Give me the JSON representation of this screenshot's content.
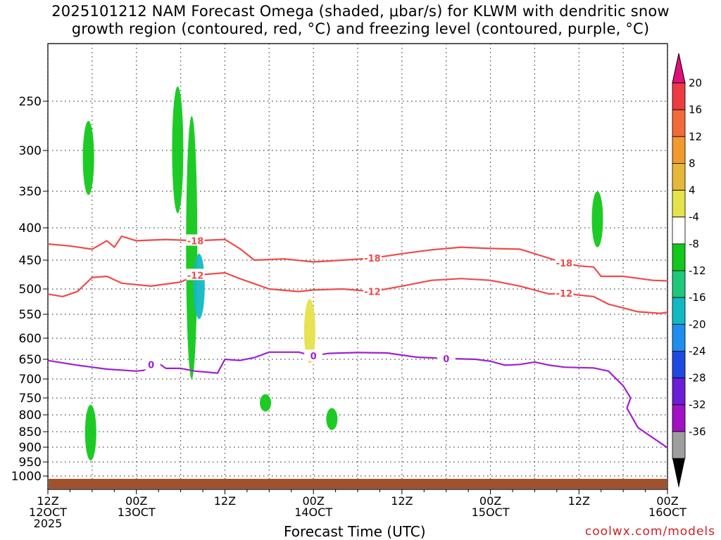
{
  "title_line1": "2025101212 NAM Forecast Omega (shaded, μbar/s) for KLWM with dendritic snow",
  "title_line2": "growth region (contoured, red, °C) and freezing level (contoured, purple, °C)",
  "x_axis_label": "Forecast Time (UTC)",
  "credit": "coolwx.com/models",
  "chart_data": {
    "type": "heatmap",
    "title": "2025101212 NAM Forecast Omega (shaded, μbar/s) for KLWM with dendritic snow growth region (contoured, red, °C) and freezing level (contoured, purple, °C)",
    "xlabel": "Forecast Time (UTC)",
    "x_ticks": [
      {
        "hour": 0,
        "line1": "12Z",
        "line2": "12OCT",
        "line3": "2025"
      },
      {
        "hour": 12,
        "line1": "00Z",
        "line2": "13OCT"
      },
      {
        "hour": 24,
        "line1": "12Z"
      },
      {
        "hour": 36,
        "line1": "00Z",
        "line2": "14OCT"
      },
      {
        "hour": 48,
        "line1": "12Z"
      },
      {
        "hour": 60,
        "line1": "00Z",
        "line2": "15OCT"
      },
      {
        "hour": 72,
        "line1": "12Z"
      },
      {
        "hour": 84,
        "line1": "00Z",
        "line2": "16OCT"
      }
    ],
    "y_ticks": [
      250,
      300,
      350,
      400,
      450,
      500,
      550,
      600,
      650,
      700,
      750,
      800,
      850,
      900,
      950,
      1000
    ],
    "colorbar": {
      "labels": [
        "20",
        "16",
        "12",
        "8",
        "4",
        "-4",
        "-8",
        "-12",
        "-16",
        "-20",
        "-24",
        "-28",
        "-32",
        "-36"
      ],
      "colors": [
        "#ee3a43",
        "#f26a3a",
        "#f29a2e",
        "#e6b83a",
        "#e6e24a",
        "#ffffff",
        "#12c81a",
        "#1ec87a",
        "#12b8c4",
        "#1e8ef0",
        "#1e4ae0",
        "#6a1ed8",
        "#a012c4",
        "#9e9e9e"
      ],
      "top_arrow_color": "#e0107a",
      "bottom_arrow_color": "#000000"
    },
    "contours": [
      {
        "label": "-18",
        "color": "#f04a4a",
        "points": [
          [
            0,
            425
          ],
          [
            3,
            428
          ],
          [
            6,
            433
          ],
          [
            8,
            420
          ],
          [
            9,
            430
          ],
          [
            10,
            413
          ],
          [
            12,
            420
          ],
          [
            16,
            418
          ],
          [
            20,
            420
          ],
          [
            24,
            418
          ],
          [
            26,
            432
          ],
          [
            28,
            450
          ],
          [
            32,
            448
          ],
          [
            36,
            453
          ],
          [
            40,
            450
          ],
          [
            44,
            447
          ],
          [
            48,
            440
          ],
          [
            52,
            434
          ],
          [
            56,
            430
          ],
          [
            60,
            432
          ],
          [
            64,
            433
          ],
          [
            66,
            440
          ],
          [
            70,
            455
          ],
          [
            72,
            460
          ],
          [
            74,
            462
          ],
          [
            75,
            478
          ],
          [
            78,
            478
          ],
          [
            82,
            485
          ],
          [
            84,
            486
          ]
        ]
      },
      {
        "label": "-12",
        "color": "#f04a4a",
        "points": [
          [
            0,
            510
          ],
          [
            2,
            515
          ],
          [
            4,
            505
          ],
          [
            6,
            480
          ],
          [
            8,
            478
          ],
          [
            10,
            490
          ],
          [
            14,
            495
          ],
          [
            18,
            488
          ],
          [
            20,
            476
          ],
          [
            24,
            472
          ],
          [
            26,
            482
          ],
          [
            30,
            500
          ],
          [
            34,
            505
          ],
          [
            36,
            502
          ],
          [
            40,
            500
          ],
          [
            44,
            505
          ],
          [
            48,
            495
          ],
          [
            52,
            485
          ],
          [
            56,
            482
          ],
          [
            60,
            485
          ],
          [
            64,
            495
          ],
          [
            68,
            510
          ],
          [
            70,
            508
          ],
          [
            72,
            512
          ],
          [
            74,
            515
          ],
          [
            76,
            530
          ],
          [
            80,
            545
          ],
          [
            83,
            548
          ],
          [
            84,
            546
          ]
        ]
      },
      {
        "label": "0",
        "color": "#a020d0",
        "points": [
          [
            0,
            653
          ],
          [
            4,
            665
          ],
          [
            8,
            675
          ],
          [
            12,
            680
          ],
          [
            13,
            678
          ],
          [
            14,
            663
          ],
          [
            15,
            660
          ],
          [
            16,
            673
          ],
          [
            18,
            673
          ],
          [
            20,
            680
          ],
          [
            23,
            685
          ],
          [
            24,
            650
          ],
          [
            26,
            653
          ],
          [
            28,
            646
          ],
          [
            30,
            633
          ],
          [
            34,
            633
          ],
          [
            36,
            642
          ],
          [
            38,
            636
          ],
          [
            42,
            634
          ],
          [
            46,
            635
          ],
          [
            50,
            645
          ],
          [
            54,
            648
          ],
          [
            58,
            650
          ],
          [
            60,
            655
          ],
          [
            62,
            665
          ],
          [
            64,
            663
          ],
          [
            66,
            657
          ],
          [
            68,
            665
          ],
          [
            70,
            670
          ],
          [
            72,
            671
          ],
          [
            74,
            672
          ],
          [
            76,
            680
          ],
          [
            78,
            718
          ],
          [
            79,
            750
          ],
          [
            78.5,
            780
          ],
          [
            80,
            838
          ],
          [
            84,
            902
          ]
        ]
      }
    ],
    "omega_regions": [
      {
        "band": "-4 to -8",
        "hour_center": 5.5,
        "p_top": 270,
        "p_bottom": 355
      },
      {
        "band": "-4 to -8",
        "hour_center": 17.6,
        "p_top": 235,
        "p_bottom": 380
      },
      {
        "band": "-4 to -8",
        "hour_center": 19.5,
        "p_top": 265,
        "p_bottom": 700
      },
      {
        "band": "-12 to -16",
        "hour_center": 20.5,
        "p_top": 440,
        "p_bottom": 560
      },
      {
        "band": "4 to 8",
        "hour_center": 35.5,
        "p_top": 520,
        "p_bottom": 660
      },
      {
        "band": "-4 to -8",
        "hour_center": 5.8,
        "p_top": 770,
        "p_bottom": 945
      },
      {
        "band": "-4 to -8",
        "hour_center": 38.5,
        "p_top": 780,
        "p_bottom": 845
      },
      {
        "band": "-4 to -8",
        "hour_center": 29.5,
        "p_top": 740,
        "p_bottom": 790
      },
      {
        "band": "-4 to -8",
        "hour_center": 74.5,
        "p_top": 350,
        "p_bottom": 430
      }
    ]
  }
}
